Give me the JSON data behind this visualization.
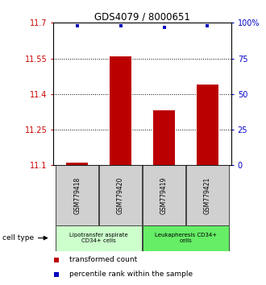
{
  "title": "GDS4079 / 8000651",
  "samples": [
    "GSM779418",
    "GSM779420",
    "GSM779419",
    "GSM779421"
  ],
  "bar_values": [
    11.11,
    11.56,
    11.33,
    11.44
  ],
  "percentile_values": [
    98,
    98,
    97,
    98
  ],
  "ylim_left": [
    11.1,
    11.7
  ],
  "ylim_right": [
    0,
    100
  ],
  "yticks_left": [
    11.1,
    11.25,
    11.4,
    11.55,
    11.7
  ],
  "yticks_right": [
    0,
    25,
    50,
    75,
    100
  ],
  "ytick_labels_left": [
    "11.1",
    "11.25",
    "11.4",
    "11.55",
    "11.7"
  ],
  "ytick_labels_right": [
    "0",
    "25",
    "50",
    "75",
    "100%"
  ],
  "bar_color": "#bb0000",
  "percentile_color": "#0000bb",
  "bar_width": 0.5,
  "group_colors": [
    "#ccffcc",
    "#66ee66"
  ],
  "group_labels": [
    "Lipotransfer aspirate\nCD34+ cells",
    "Leukapheresis CD34+\ncells"
  ],
  "cell_type_label": "cell type",
  "legend_transformed": "transformed count",
  "legend_percentile": "percentile rank within the sample",
  "left_axis_color": "#cc0000",
  "right_axis_color": "#0000cc",
  "sample_box_color": "#d0d0d0"
}
